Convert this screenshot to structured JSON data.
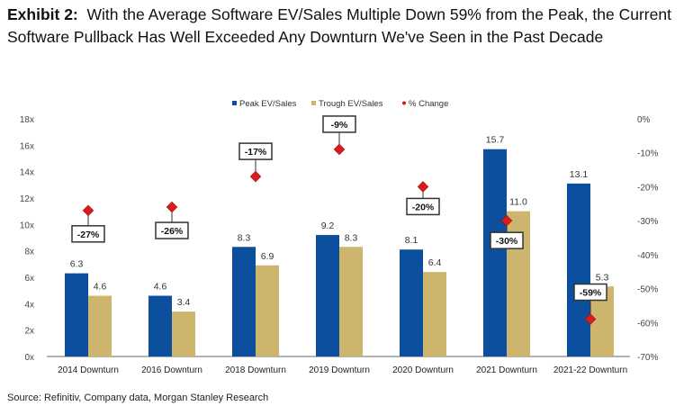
{
  "title": {
    "prefix": "Exhibit 2:",
    "text": "With the Average Software EV/Sales Multiple Down 59% from the Peak, the Current Software Pullback Has Well Exceeded Any Downturn We've Seen in the Past Decade"
  },
  "source": "Source: Refinitiv, Company data, Morgan Stanley Research",
  "colors": {
    "peak": "#0b4f9e",
    "trough": "#cdb56d",
    "change": "#d81b1b"
  },
  "chart_data": {
    "type": "bar",
    "categories": [
      "2014 Downturn",
      "2016 Downturn",
      "2018 Downturn",
      "2019 Downturn",
      "2020 Downturn",
      "2021 Downturn",
      "2021-22 Downturn"
    ],
    "series": [
      {
        "name": "Peak EV/Sales",
        "axis": "left",
        "values": [
          6.3,
          4.6,
          8.3,
          9.2,
          8.1,
          15.7,
          13.1
        ],
        "labels": [
          "6.3",
          "4.6",
          "8.3",
          "9.2",
          "8.1",
          "15.7",
          "13.1"
        ]
      },
      {
        "name": "Trough EV/Sales",
        "axis": "left",
        "values": [
          4.6,
          3.4,
          6.9,
          8.3,
          6.4,
          11.0,
          5.3
        ],
        "labels": [
          "4.6",
          "3.4",
          "6.9",
          "8.3",
          "6.4",
          "11.0",
          "5.3"
        ]
      },
      {
        "name": "% Change",
        "axis": "right",
        "type": "scatter",
        "values": [
          -27,
          -26,
          -17,
          -9,
          -20,
          -30,
          -59
        ],
        "labels": [
          "-27%",
          "-26%",
          "-17%",
          "-9%",
          "-20%",
          "-30%",
          "-59%"
        ]
      }
    ],
    "left_axis": {
      "ylim": [
        0,
        18
      ],
      "ticks": [
        "0x",
        "2x",
        "4x",
        "6x",
        "8x",
        "10x",
        "12x",
        "14x",
        "16x",
        "18x"
      ]
    },
    "right_axis": {
      "ylim": [
        -70,
        0
      ],
      "ticks": [
        "-70%",
        "-60%",
        "-50%",
        "-40%",
        "-30%",
        "-20%",
        "-10%",
        "0%"
      ]
    },
    "legend": {
      "placement": "top-center",
      "entries": [
        "Peak EV/Sales",
        "Trough EV/Sales",
        "% Change"
      ]
    },
    "grid": false
  }
}
